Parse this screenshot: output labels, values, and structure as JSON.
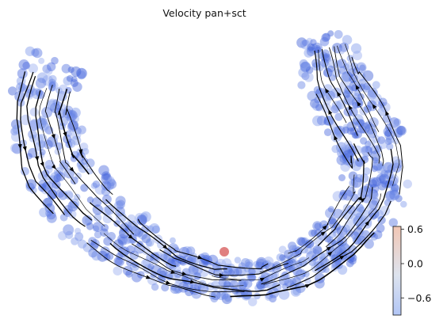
{
  "chart_data": {
    "type": "scatter",
    "title": "Velocity pan+sct",
    "xlabel": "",
    "ylabel": "",
    "axes_visible": false,
    "grid": false,
    "overlay": "velocity streamlines with arrowheads",
    "cell_color_default": "#4a68dd",
    "highlight_cell_color": "#e08080",
    "colorbar": {
      "placement": "right",
      "cmap": "coolwarm",
      "range": [
        -0.9,
        0.65
      ],
      "ticks": [
        0.6,
        0.0,
        -0.6
      ],
      "tick_labels": [
        "0.6",
        "0.0",
        "−0.6"
      ],
      "colors": {
        "low": "#3b4cc0",
        "mid": "#dddddd",
        "high": "#b40426"
      }
    }
  }
}
